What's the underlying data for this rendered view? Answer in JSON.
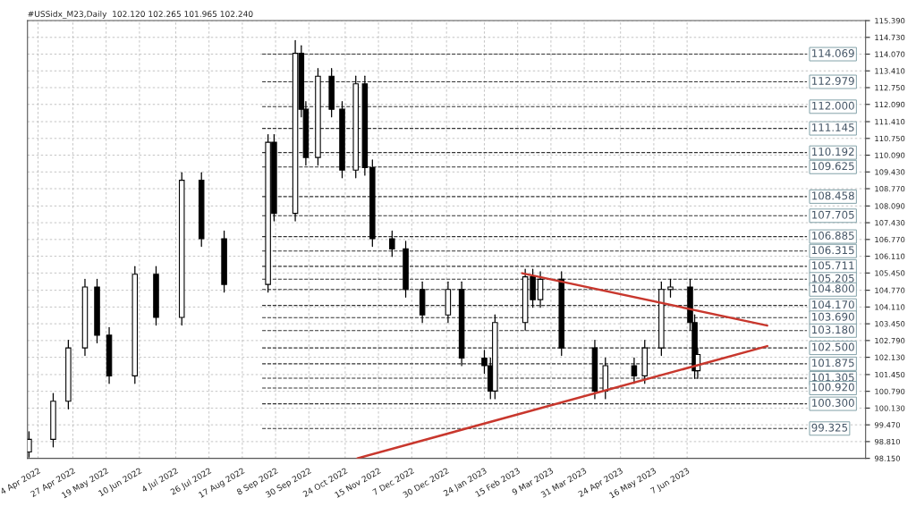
{
  "chart_data": {
    "type": "candlestick",
    "title": "#USSidx_M23,Daily  102.120 102.265 101.965 102.240",
    "x": [
      "2022-03-29",
      "2022-04-14",
      "2022-04-24",
      "2022-05-05",
      "2022-05-13",
      "2022-05-21",
      "2022-06-07",
      "2022-06-21",
      "2022-07-08",
      "2022-07-21",
      "2022-08-05",
      "2022-09-03",
      "2022-09-07",
      "2022-09-21",
      "2022-09-25",
      "2022-09-28",
      "2022-10-06",
      "2022-10-15",
      "2022-10-22",
      "2022-10-31",
      "2022-11-06",
      "2022-11-11",
      "2022-11-24",
      "2022-12-03",
      "2022-12-14",
      "2022-12-31",
      "2023-01-09",
      "2023-01-24",
      "2023-01-28",
      "2023-01-31",
      "2023-02-20",
      "2023-02-25",
      "2023-03-02",
      "2023-03-16",
      "2023-04-07",
      "2023-04-14",
      "2023-05-03",
      "2023-05-10",
      "2023-05-21",
      "2023-05-27",
      "2023-06-09",
      "2023-06-12",
      "2023-06-14"
    ],
    "ohlc": [
      [
        98.4,
        99.2,
        98.2,
        98.9
      ],
      [
        98.9,
        100.7,
        98.6,
        100.4
      ],
      [
        100.4,
        102.8,
        100.1,
        102.5
      ],
      [
        102.5,
        105.2,
        102.2,
        104.9
      ],
      [
        104.9,
        105.2,
        102.7,
        103.0
      ],
      [
        103.0,
        103.3,
        101.1,
        101.4
      ],
      [
        101.4,
        105.7,
        101.1,
        105.4
      ],
      [
        105.4,
        105.7,
        103.4,
        103.7
      ],
      [
        103.7,
        109.4,
        103.4,
        109.1
      ],
      [
        109.1,
        109.4,
        106.5,
        106.8
      ],
      [
        106.8,
        107.1,
        104.7,
        105.0
      ],
      [
        105.0,
        110.9,
        104.7,
        110.6
      ],
      [
        110.6,
        110.9,
        107.5,
        107.8
      ],
      [
        107.8,
        114.6,
        107.5,
        114.1
      ],
      [
        114.1,
        114.4,
        111.6,
        111.9
      ],
      [
        111.9,
        112.2,
        109.7,
        110.0
      ],
      [
        110.0,
        113.5,
        109.7,
        113.2
      ],
      [
        113.2,
        113.5,
        111.6,
        111.9
      ],
      [
        111.9,
        112.2,
        109.2,
        109.5
      ],
      [
        109.5,
        113.2,
        109.2,
        112.9
      ],
      [
        112.9,
        113.2,
        109.3,
        109.6
      ],
      [
        109.6,
        109.9,
        106.5,
        106.8
      ],
      [
        106.8,
        107.1,
        106.1,
        106.4
      ],
      [
        106.4,
        106.7,
        104.5,
        104.8
      ],
      [
        104.8,
        105.1,
        103.5,
        103.8
      ],
      [
        103.8,
        105.1,
        103.5,
        104.8
      ],
      [
        104.8,
        105.1,
        101.8,
        102.1
      ],
      [
        102.1,
        102.4,
        101.5,
        101.8
      ],
      [
        101.8,
        102.1,
        100.5,
        100.8
      ],
      [
        100.8,
        103.8,
        100.5,
        103.5
      ],
      [
        103.5,
        105.6,
        103.2,
        105.3
      ],
      [
        105.3,
        105.6,
        104.1,
        104.4
      ],
      [
        104.4,
        105.5,
        104.1,
        105.2
      ],
      [
        105.2,
        105.5,
        102.2,
        102.5
      ],
      [
        102.5,
        102.8,
        100.5,
        100.8
      ],
      [
        100.8,
        102.1,
        100.5,
        101.8
      ],
      [
        101.8,
        102.1,
        101.1,
        101.4
      ],
      [
        101.4,
        102.8,
        101.1,
        102.5
      ],
      [
        102.5,
        105.1,
        102.2,
        104.8
      ],
      [
        104.8,
        105.2,
        104.5,
        104.9
      ],
      [
        104.9,
        105.2,
        103.2,
        103.5
      ],
      [
        103.5,
        103.8,
        101.3,
        101.6
      ],
      [
        101.6,
        102.5,
        101.3,
        102.24
      ]
    ],
    "series": [
      {
        "type": "line",
        "color": "#c8372d",
        "x": [
          "2023-02-18",
          "2023-07-30"
        ],
        "values": [
          105.44,
          103.38
        ]
      },
      {
        "type": "line",
        "color": "#c8372d",
        "x": [
          "2022-11-01",
          "2023-07-30"
        ],
        "values": [
          98.15,
          102.57
        ]
      }
    ],
    "ref_lines": [
      {
        "axis": "y",
        "value": 114.069,
        "label": "114.069"
      },
      {
        "axis": "y",
        "value": 112.979,
        "label": "112.979"
      },
      {
        "axis": "y",
        "value": 112.0,
        "label": "112.000"
      },
      {
        "axis": "y",
        "value": 111.145,
        "label": "111.145"
      },
      {
        "axis": "y",
        "value": 110.192,
        "label": "110.192"
      },
      {
        "axis": "y",
        "value": 109.625,
        "label": "109.625"
      },
      {
        "axis": "y",
        "value": 108.458,
        "label": "108.458"
      },
      {
        "axis": "y",
        "value": 107.705,
        "label": "107.705"
      },
      {
        "axis": "y",
        "value": 106.885,
        "label": "106.885"
      },
      {
        "axis": "y",
        "value": 106.315,
        "label": "106.315"
      },
      {
        "axis": "y",
        "value": 105.711,
        "label": "105.711"
      },
      {
        "axis": "y",
        "value": 105.205,
        "label": "105.205"
      },
      {
        "axis": "y",
        "value": 104.8,
        "label": "104.800"
      },
      {
        "axis": "y",
        "value": 104.17,
        "label": "104.170"
      },
      {
        "axis": "y",
        "value": 103.69,
        "label": "103.690"
      },
      {
        "axis": "y",
        "value": 103.18,
        "label": "103.180"
      },
      {
        "axis": "y",
        "value": 102.5,
        "label": "102.500"
      },
      {
        "axis": "y",
        "value": 101.875,
        "label": "101.875"
      },
      {
        "axis": "y",
        "value": 101.305,
        "label": "101.305"
      },
      {
        "axis": "y",
        "value": 100.92,
        "label": "100.920"
      },
      {
        "axis": "y",
        "value": 100.3,
        "label": "100.300"
      },
      {
        "axis": "y",
        "value": 99.325,
        "label": "99.325"
      }
    ],
    "xlim": [
      "2022-03-28",
      "2023-10-03"
    ],
    "xticks": [
      {
        "value": "2022-04-04",
        "label": "4 Apr 2022"
      },
      {
        "value": "2022-04-27",
        "label": "27 Apr 2022"
      },
      {
        "value": "2022-05-19",
        "label": "19 May 2022"
      },
      {
        "value": "2022-06-10",
        "label": "10 Jun 2022"
      },
      {
        "value": "2022-07-04",
        "label": "4 Jul 2022"
      },
      {
        "value": "2022-07-26",
        "label": "26 Jul 2022"
      },
      {
        "value": "2022-08-17",
        "label": "17 Aug 2022"
      },
      {
        "value": "2022-09-08",
        "label": "8 Sep 2022"
      },
      {
        "value": "2022-09-30",
        "label": "30 Sep 2022"
      },
      {
        "value": "2022-10-24",
        "label": "24 Oct 2022"
      },
      {
        "value": "2022-11-15",
        "label": "15 Nov 2022"
      },
      {
        "value": "2022-12-07",
        "label": "7 Dec 2022"
      },
      {
        "value": "2022-12-30",
        "label": "30 Dec 2022"
      },
      {
        "value": "2023-01-24",
        "label": "24 Jan 2023"
      },
      {
        "value": "2023-02-15",
        "label": "15 Feb 2023"
      },
      {
        "value": "2023-03-09",
        "label": "9 Mar 2023"
      },
      {
        "value": "2023-03-31",
        "label": "31 Mar 2023"
      },
      {
        "value": "2023-04-24",
        "label": "24 Apr 2023"
      },
      {
        "value": "2023-05-16",
        "label": "16 May 2023"
      },
      {
        "value": "2023-06-07",
        "label": "7 Jun 2023"
      }
    ],
    "ylim": [
      98.15,
      115.39
    ],
    "yticks": [
      {
        "value": 98.15,
        "label": "98.150"
      },
      {
        "value": 98.81,
        "label": "98.810"
      },
      {
        "value": 99.47,
        "label": "99.470"
      },
      {
        "value": 100.13,
        "label": "100.130"
      },
      {
        "value": 100.79,
        "label": "100.790"
      },
      {
        "value": 101.45,
        "label": "101.450"
      },
      {
        "value": 102.13,
        "label": "102.130"
      },
      {
        "value": 102.79,
        "label": "102.790"
      },
      {
        "value": 103.45,
        "label": "103.450"
      },
      {
        "value": 104.11,
        "label": "104.110"
      },
      {
        "value": 104.77,
        "label": "104.770"
      },
      {
        "value": 105.45,
        "label": "105.450"
      },
      {
        "value": 106.11,
        "label": "106.110"
      },
      {
        "value": 106.77,
        "label": "106.770"
      },
      {
        "value": 107.43,
        "label": "107.430"
      },
      {
        "value": 108.09,
        "label": "108.090"
      },
      {
        "value": 108.77,
        "label": "108.770"
      },
      {
        "value": 109.43,
        "label": "109.430"
      },
      {
        "value": 110.09,
        "label": "110.090"
      },
      {
        "value": 110.75,
        "label": "110.750"
      },
      {
        "value": 111.41,
        "label": "111.410"
      },
      {
        "value": 112.09,
        "label": "112.090"
      },
      {
        "value": 112.75,
        "label": "112.750"
      },
      {
        "value": 113.41,
        "label": "113.410"
      },
      {
        "value": 114.07,
        "label": "114.070"
      },
      {
        "value": 114.73,
        "label": "114.730"
      },
      {
        "value": 115.39,
        "label": "115.390"
      }
    ],
    "grid": true,
    "legend": false
  }
}
